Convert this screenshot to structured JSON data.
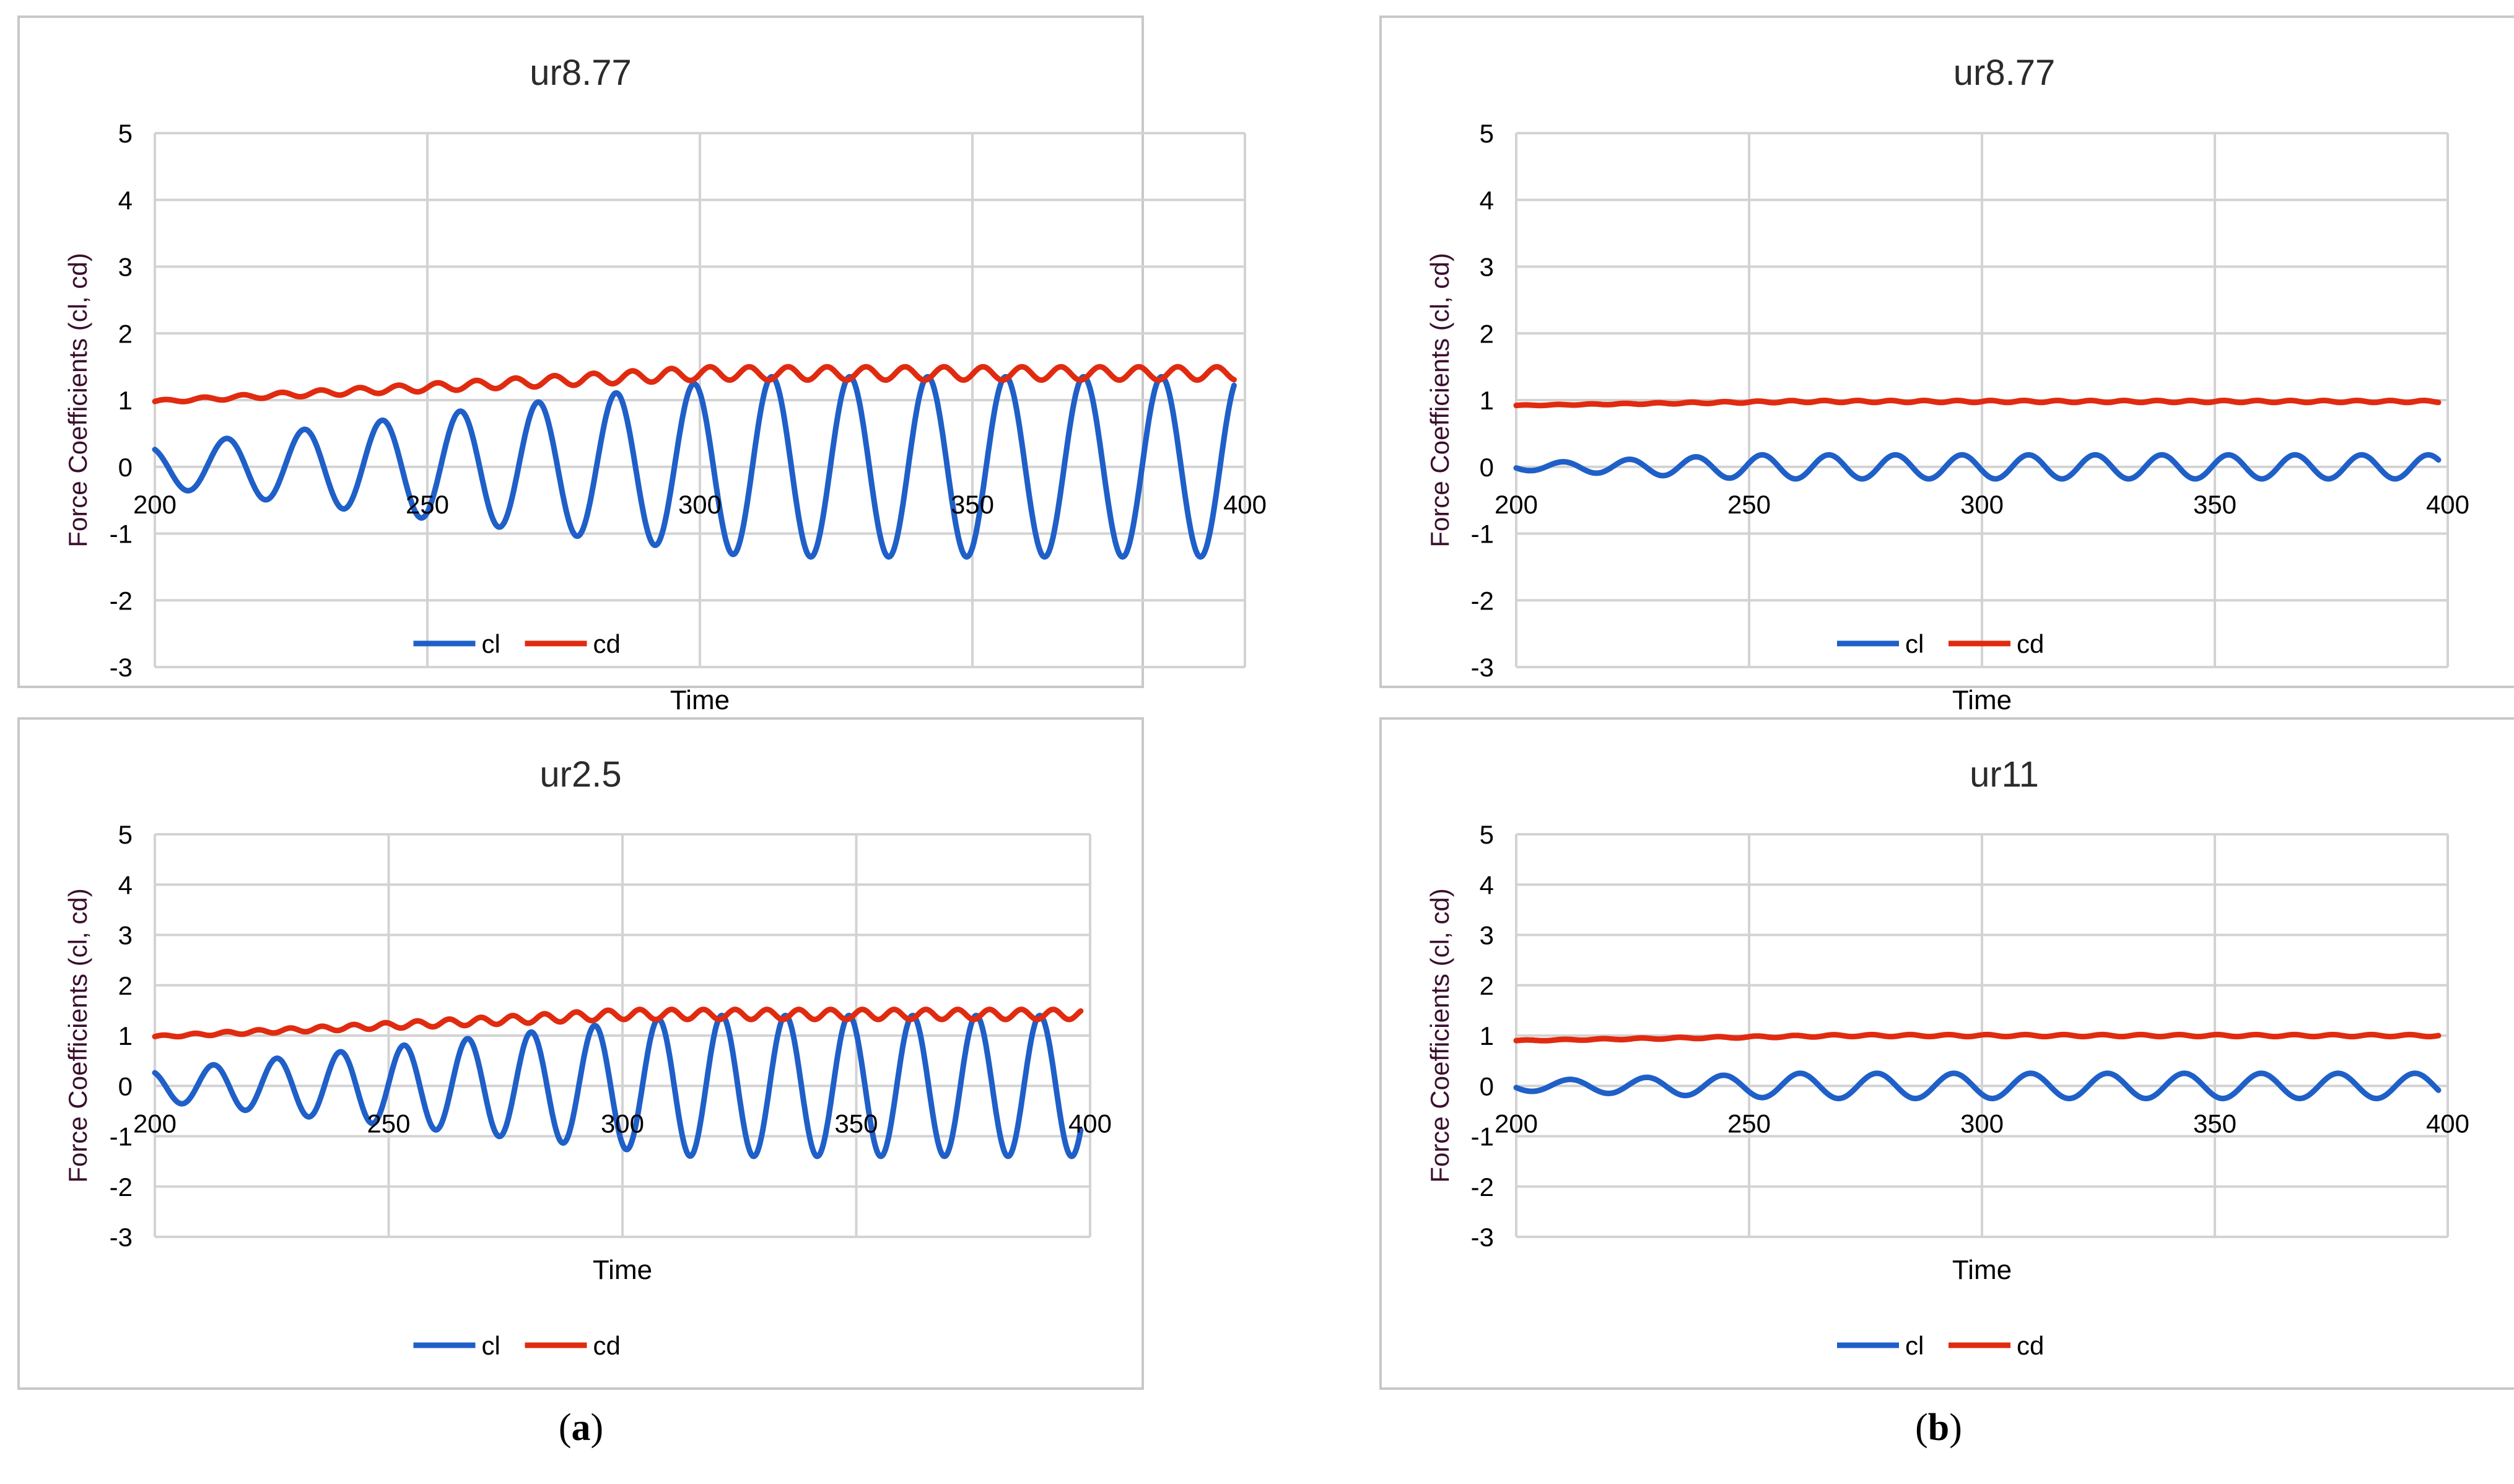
{
  "figure": {
    "captions": [
      {
        "open": "(",
        "letter": "a",
        "close": ")"
      },
      {
        "open": "(",
        "letter": "b",
        "close": ")"
      }
    ]
  },
  "colors": {
    "cl": "#1f5fc8",
    "cd": "#e02b10",
    "grid": "#d3d3d3",
    "frame": "#c8c8c8",
    "title": "#2b2b2b",
    "ylabel": "#3b0f2e"
  },
  "chart_data": [
    {
      "id": "a-top",
      "type": "line",
      "title": "ur8.77",
      "xlabel": "Time",
      "ylabel": "Force Coefficients (cl, cd)",
      "xlim": [
        200,
        400
      ],
      "ylim": [
        -3,
        5
      ],
      "xticks": [
        200,
        250,
        300,
        350,
        400
      ],
      "yticks": [
        -3,
        -2,
        -1,
        0,
        1,
        2,
        3,
        4,
        5
      ],
      "grid": true,
      "legend": "bottom",
      "series": [
        {
          "name": "cl",
          "x_start": 200,
          "x_end": 398,
          "period": 14.3,
          "amp_start": 0.3,
          "amp_end": 1.35,
          "amp_ramp_end": 310,
          "offset": 0,
          "phase_deg": 120
        },
        {
          "name": "cd",
          "x_start": 200,
          "x_end": 398,
          "period": 7.15,
          "mean_start": 0.98,
          "mean_end": 1.4,
          "mean_ramp_end": 300,
          "amp_start": 0.02,
          "amp_end": 0.1,
          "amp_ramp_end": 300,
          "phase_deg": 0
        }
      ]
    },
    {
      "id": "b-top",
      "type": "line",
      "title": "ur8.77",
      "xlabel": "Time",
      "ylabel": "Force Coefficients (cl, cd)",
      "xlim": [
        200,
        400
      ],
      "ylim": [
        -3,
        5
      ],
      "xticks": [
        200,
        250,
        300,
        350,
        400
      ],
      "yticks": [
        -3,
        -2,
        -1,
        0,
        1,
        2,
        3,
        4,
        5
      ],
      "grid": true,
      "legend": "bottom",
      "series": [
        {
          "name": "cl",
          "x_start": 200,
          "x_end": 398,
          "period": 14.3,
          "amp_start": 0.05,
          "amp_end": 0.18,
          "amp_ramp_end": 250,
          "offset": 0,
          "phase_deg": 200
        },
        {
          "name": "cd",
          "x_start": 200,
          "x_end": 398,
          "period": 7.15,
          "mean_start": 0.92,
          "mean_end": 0.98,
          "mean_ramp_end": 260,
          "amp_start": 0.005,
          "amp_end": 0.015,
          "amp_ramp_end": 260,
          "phase_deg": 0
        }
      ]
    },
    {
      "id": "a-bottom",
      "type": "line",
      "title": "ur2.5",
      "xlabel": "Time",
      "ylabel": "Force Coefficients (cl, cd)",
      "xlim": [
        200,
        400
      ],
      "ylim": [
        -3,
        5
      ],
      "xticks": [
        200,
        250,
        300,
        350,
        400
      ],
      "yticks": [
        -3,
        -2,
        -1,
        0,
        1,
        2,
        3,
        4,
        5
      ],
      "grid": true,
      "legend": "bottom",
      "series": [
        {
          "name": "cl",
          "x_start": 200,
          "x_end": 398,
          "period": 13.6,
          "amp_start": 0.3,
          "amp_end": 1.4,
          "amp_ramp_end": 315,
          "offset": 0,
          "phase_deg": 120
        },
        {
          "name": "cd",
          "x_start": 200,
          "x_end": 398,
          "period": 6.8,
          "mean_start": 0.98,
          "mean_end": 1.42,
          "mean_ramp_end": 300,
          "amp_start": 0.02,
          "amp_end": 0.1,
          "amp_ramp_end": 300,
          "phase_deg": 0
        }
      ]
    },
    {
      "id": "b-bottom",
      "type": "line",
      "title": "ur11",
      "xlabel": "Time",
      "ylabel": "Force Coefficients (cl, cd)",
      "xlim": [
        200,
        400
      ],
      "ylim": [
        -3,
        5
      ],
      "xticks": [
        200,
        250,
        300,
        350,
        400
      ],
      "yticks": [
        -3,
        -2,
        -1,
        0,
        1,
        2,
        3,
        4,
        5
      ],
      "grid": true,
      "legend": "bottom",
      "series": [
        {
          "name": "cl",
          "x_start": 200,
          "x_end": 398,
          "period": 16.5,
          "amp_start": 0.1,
          "amp_end": 0.25,
          "amp_ramp_end": 260,
          "offset": 0,
          "phase_deg": 200
        },
        {
          "name": "cd",
          "x_start": 200,
          "x_end": 398,
          "period": 8.25,
          "mean_start": 0.9,
          "mean_end": 1.0,
          "mean_ramp_end": 270,
          "amp_start": 0.01,
          "amp_end": 0.02,
          "amp_ramp_end": 270,
          "phase_deg": 0
        }
      ]
    }
  ]
}
